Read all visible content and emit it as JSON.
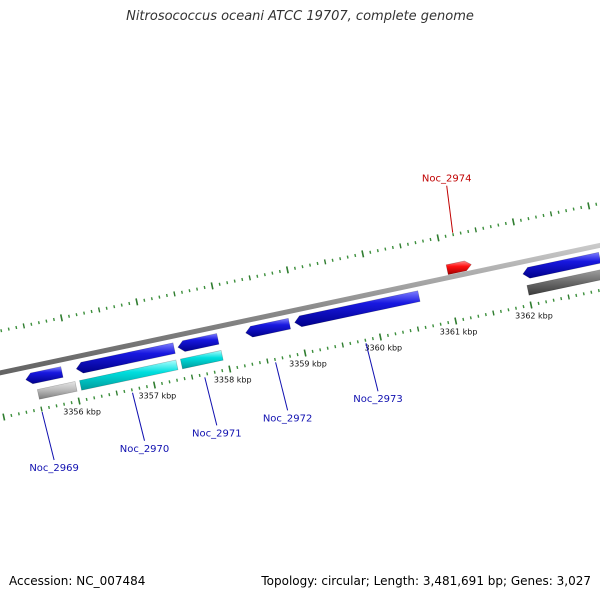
{
  "title": "Nitrosococcus oceani ATCC 19707, complete genome",
  "footer": {
    "accession": "Accession: NC_007484",
    "topology": "Topology: circular; Length: 3,481,691 bp; Genes: 3,027"
  },
  "colors": {
    "backbone": "#8c8c8c",
    "tick_major": "#2f7d2f",
    "tick_minor": "#3c8f3c",
    "cds": "#1818e0",
    "cds_highlight": "#00dede",
    "cds_selected": "#ff0000",
    "gray_feature": "#b8b8b8",
    "dark_feature": "#6e6e6e",
    "label_blue": "#1010b0",
    "label_red": "#c00000"
  },
  "ticks": [
    {
      "kbp": 3356,
      "label": "3356 kbp"
    },
    {
      "kbp": 3357,
      "label": "3357 kbp"
    },
    {
      "kbp": 3358,
      "label": "3358 kbp"
    },
    {
      "kbp": 3359,
      "label": "3359 kbp"
    },
    {
      "kbp": 3360,
      "label": "3360 kbp"
    },
    {
      "kbp": 3361,
      "label": "3361 kbp"
    },
    {
      "kbp": 3362,
      "label": "3362 kbp"
    }
  ],
  "features": [
    {
      "start": 3355.38,
      "end": 3355.86,
      "strand": "inner",
      "type": "cds",
      "direction": "reverse"
    },
    {
      "start": 3355.5,
      "end": 3356.0,
      "strand": "lower",
      "type": "gray",
      "direction": "none"
    },
    {
      "start": 3356.05,
      "end": 3357.35,
      "strand": "inner",
      "type": "cds",
      "direction": "reverse"
    },
    {
      "start": 3356.06,
      "end": 3357.34,
      "strand": "lower",
      "type": "highlight",
      "direction": "none"
    },
    {
      "start": 3357.4,
      "end": 3357.93,
      "strand": "inner",
      "type": "cds",
      "direction": "reverse"
    },
    {
      "start": 3357.4,
      "end": 3357.94,
      "strand": "lower",
      "type": "highlight",
      "direction": "none"
    },
    {
      "start": 3358.3,
      "end": 3358.88,
      "strand": "inner",
      "type": "cds",
      "direction": "reverse"
    },
    {
      "start": 3358.95,
      "end": 3360.6,
      "strand": "inner",
      "type": "cds",
      "direction": "reverse"
    },
    {
      "start": 3361.03,
      "end": 3361.35,
      "strand": "outer",
      "type": "selected",
      "direction": "forward"
    },
    {
      "start": 3361.98,
      "end": 3363.0,
      "strand": "inner",
      "type": "cds",
      "direction": "reverse"
    },
    {
      "start": 3362.0,
      "end": 3363.0,
      "strand": "lower",
      "type": "dark",
      "direction": "none"
    }
  ],
  "gene_labels": [
    {
      "text": "Noc_2969",
      "kbp": 3355.5,
      "side": "below",
      "color": "blue"
    },
    {
      "text": "Noc_2970",
      "kbp": 3356.7,
      "side": "below",
      "color": "blue"
    },
    {
      "text": "Noc_2971",
      "kbp": 3357.66,
      "side": "below",
      "color": "blue"
    },
    {
      "text": "Noc_2972",
      "kbp": 3358.6,
      "side": "below",
      "color": "blue"
    },
    {
      "text": "Noc_2973",
      "kbp": 3359.8,
      "side": "below",
      "color": "blue"
    },
    {
      "text": "Noc_2974",
      "kbp": 3361.2,
      "side": "above",
      "color": "red"
    }
  ]
}
